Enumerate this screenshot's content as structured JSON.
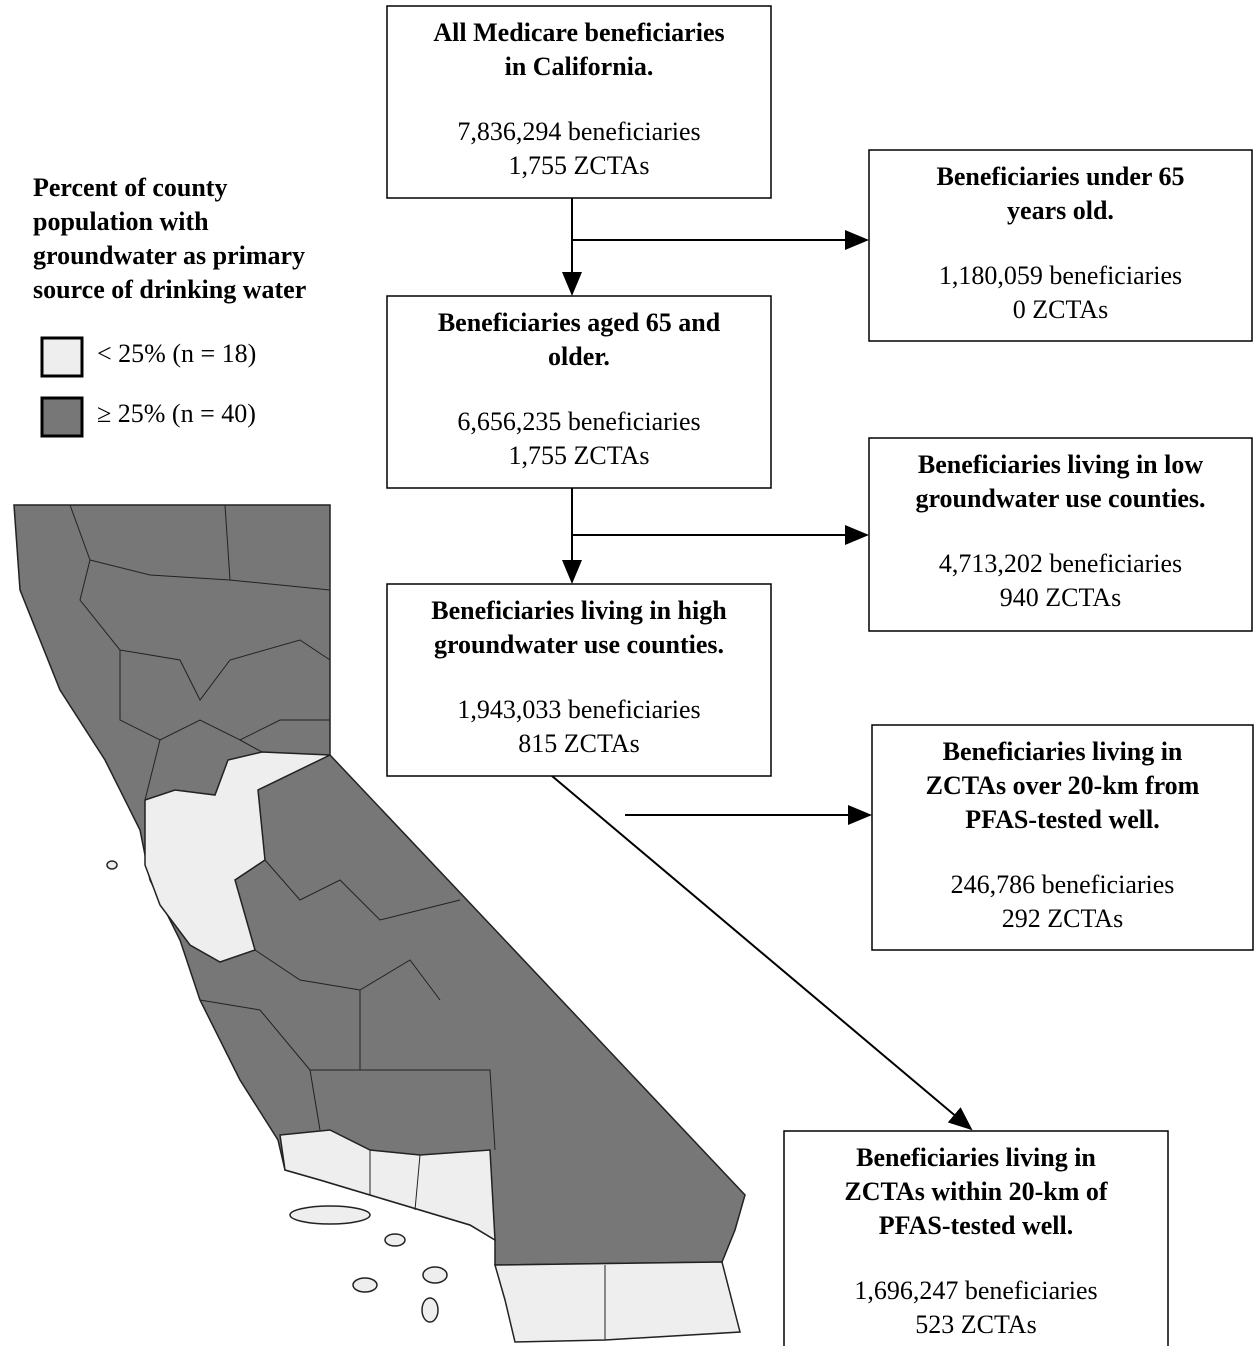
{
  "legend": {
    "title_lines": [
      "Percent of county",
      "population with",
      "groundwater as primary",
      "source of drinking water"
    ],
    "items": [
      {
        "label": "< 25% (n = 18)",
        "color": "#eeeeee"
      },
      {
        "label": "≥ 25% (n = 40)",
        "color": "#777777"
      }
    ]
  },
  "nodes": [
    {
      "title_lines": [
        "All Medicare beneficiaries",
        "in California."
      ],
      "beneficiaries": "7,836,294 beneficiaries",
      "zctas": "1,755 ZCTAs"
    },
    {
      "title_lines": [
        "Beneficiaries under 65",
        "years old."
      ],
      "beneficiaries": "1,180,059 beneficiaries",
      "zctas": "0 ZCTAs"
    },
    {
      "title_lines": [
        "Beneficiaries aged 65 and",
        "older."
      ],
      "beneficiaries": "6,656,235 beneficiaries",
      "zctas": "1,755 ZCTAs"
    },
    {
      "title_lines": [
        "Beneficiaries living in low",
        "groundwater use counties."
      ],
      "beneficiaries": "4,713,202 beneficiaries",
      "zctas": "940 ZCTAs"
    },
    {
      "title_lines": [
        "Beneficiaries living in high",
        "groundwater use counties."
      ],
      "beneficiaries": "1,943,033 beneficiaries",
      "zctas": "815 ZCTAs"
    },
    {
      "title_lines": [
        "Beneficiaries living in",
        "ZCTAs over 20-km from",
        "PFAS-tested well."
      ],
      "beneficiaries": "246,786 beneficiaries",
      "zctas": "292 ZCTAs"
    },
    {
      "title_lines": [
        "Beneficiaries living in",
        "ZCTAs within 20-km of",
        "PFAS-tested well."
      ],
      "beneficiaries": "1,696,247 beneficiaries",
      "zctas": "523 ZCTAs"
    }
  ]
}
